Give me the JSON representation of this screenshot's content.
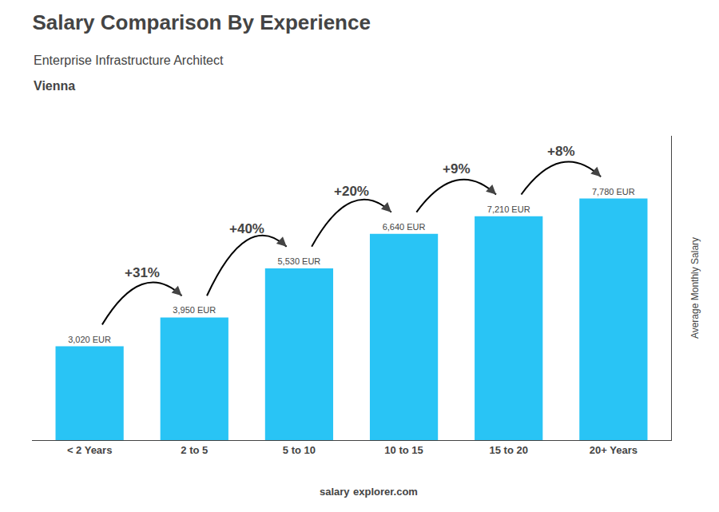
{
  "chart_data": {
    "type": "bar",
    "title": "Salary Comparison By Experience",
    "subtitle": [
      "Enterprise Infrastructure Architect",
      "Vienna"
    ],
    "ylabel": "Average Monthly Salary",
    "footer": [
      "salary",
      "explorer.com"
    ],
    "categories": [
      "< 2 Years",
      "2 to 5",
      "5 to 10",
      "10 to 15",
      "15 to 20",
      "20+ Years"
    ],
    "values": [
      3020,
      3950,
      5530,
      6640,
      7210,
      7780
    ],
    "value_labels": [
      "3,020 EUR",
      "3,950 EUR",
      "5,530 EUR",
      "6,640 EUR",
      "7,210 EUR",
      "7,780 EUR"
    ],
    "data_labels": true,
    "color": "#29c4f5",
    "ylim": [
      0,
      9800
    ],
    "tick_labels": "x",
    "grid": false,
    "annotations": [
      {
        "text": "+31%",
        "from": "< 2 Years",
        "to": "2 to 5"
      },
      {
        "text": "+40%",
        "from": "2 to 5",
        "to": "5 to 10"
      },
      {
        "text": "+20%",
        "from": "5 to 10",
        "to": "10 to 15"
      },
      {
        "text": "+9%",
        "from": "10 to 15",
        "to": "15 to 20"
      },
      {
        "text": "+8%",
        "from": "15 to 20",
        "to": "20+ Years"
      }
    ]
  }
}
